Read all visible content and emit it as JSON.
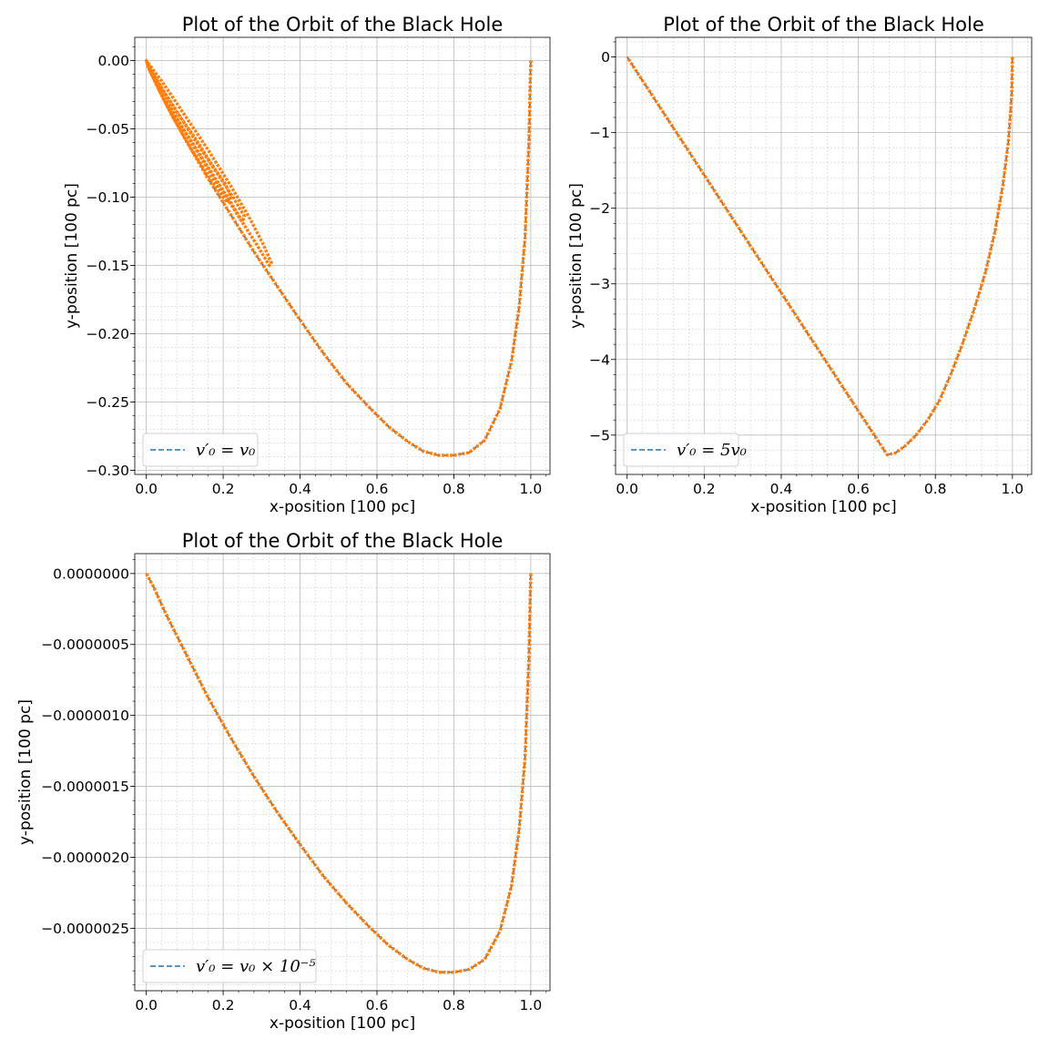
{
  "colors": {
    "orbit": "#ff7f0e",
    "dashed": "#1f77b4",
    "grid": "#b0b0b0"
  },
  "chart_data": [
    {
      "type": "line",
      "title": "Plot of the Orbit of the Black Hole",
      "xlabel": "x-position [100 pc]",
      "ylabel": "y-position [100 pc]",
      "xlim": [
        -0.03,
        1.05
      ],
      "ylim": [
        -0.303,
        0.017
      ],
      "xticks": [
        0.0,
        0.2,
        0.4,
        0.6,
        0.8,
        1.0
      ],
      "xtick_labels": [
        "0.0",
        "0.2",
        "0.4",
        "0.6",
        "0.8",
        "1.0"
      ],
      "yticks": [
        0.0,
        -0.05,
        -0.1,
        -0.15,
        -0.2,
        -0.25,
        -0.3
      ],
      "ytick_labels": [
        "0.00",
        "−0.05",
        "−0.10",
        "−0.15",
        "−0.20",
        "−0.25",
        "−0.30"
      ],
      "grid": true,
      "legend": {
        "position": "lower-left",
        "entries": [
          {
            "label": "v′₀ = v₀"
          }
        ]
      },
      "series": [
        {
          "style": "dashed",
          "x": [
            1.0,
            0.995,
            0.985,
            0.97,
            0.95,
            0.92,
            0.88,
            0.84,
            0.8,
            0.76,
            0.72,
            0.68,
            0.63,
            0.58,
            0.52,
            0.46,
            0.4,
            0.34,
            0.28,
            0.22,
            0.16,
            0.1,
            0.05,
            0.01,
            0.0
          ],
          "y": [
            0.0,
            -0.06,
            -0.13,
            -0.18,
            -0.22,
            -0.255,
            -0.278,
            -0.287,
            -0.289,
            -0.289,
            -0.286,
            -0.279,
            -0.268,
            -0.254,
            -0.236,
            -0.214,
            -0.19,
            -0.165,
            -0.14,
            -0.113,
            -0.086,
            -0.057,
            -0.031,
            -0.008,
            0.0
          ]
        },
        {
          "style": "orbit",
          "x": [
            1.0,
            0.995,
            0.985,
            0.97,
            0.95,
            0.92,
            0.88,
            0.84,
            0.8,
            0.76,
            0.72,
            0.68,
            0.63,
            0.58,
            0.52,
            0.46,
            0.4,
            0.34,
            0.28,
            0.22,
            0.16,
            0.1,
            0.05,
            0.01,
            0.0,
            0.005,
            0.04,
            0.1,
            0.16,
            0.22,
            0.27,
            0.305,
            0.325,
            0.32,
            0.29,
            0.24,
            0.18,
            0.12,
            0.06,
            0.02,
            0.0,
            0.01,
            0.04,
            0.09,
            0.14,
            0.19,
            0.23,
            0.255,
            0.25,
            0.22,
            0.17,
            0.11,
            0.05,
            0.015,
            0.0,
            0.01,
            0.04,
            0.08,
            0.13,
            0.17,
            0.205,
            0.22,
            0.21,
            0.17,
            0.12,
            0.07,
            0.03,
            0.005,
            0.0
          ],
          "y": [
            0.0,
            -0.06,
            -0.13,
            -0.18,
            -0.22,
            -0.255,
            -0.278,
            -0.287,
            -0.289,
            -0.289,
            -0.286,
            -0.279,
            -0.268,
            -0.254,
            -0.236,
            -0.214,
            -0.19,
            -0.165,
            -0.14,
            -0.113,
            -0.086,
            -0.057,
            -0.031,
            -0.008,
            0.0,
            -0.002,
            -0.015,
            -0.04,
            -0.065,
            -0.092,
            -0.116,
            -0.135,
            -0.148,
            -0.15,
            -0.136,
            -0.114,
            -0.088,
            -0.061,
            -0.033,
            -0.012,
            0.0,
            -0.006,
            -0.02,
            -0.042,
            -0.064,
            -0.085,
            -0.102,
            -0.114,
            -0.118,
            -0.104,
            -0.082,
            -0.056,
            -0.03,
            -0.01,
            0.0,
            -0.006,
            -0.02,
            -0.038,
            -0.058,
            -0.076,
            -0.09,
            -0.1,
            -0.104,
            -0.088,
            -0.066,
            -0.042,
            -0.02,
            -0.005,
            0.0
          ]
        }
      ]
    },
    {
      "type": "line",
      "title": "Plot of the Orbit of the Black Hole",
      "xlabel": "x-position [100 pc]",
      "ylabel": "y-position [100 pc]",
      "xlim": [
        -0.03,
        1.05
      ],
      "ylim": [
        -5.52,
        0.26
      ],
      "xticks": [
        0.0,
        0.2,
        0.4,
        0.6,
        0.8,
        1.0
      ],
      "xtick_labels": [
        "0.0",
        "0.2",
        "0.4",
        "0.6",
        "0.8",
        "1.0"
      ],
      "yticks": [
        0,
        -1,
        -2,
        -3,
        -4,
        -5
      ],
      "ytick_labels": [
        "0",
        "−1",
        "−2",
        "−3",
        "−4",
        "−5"
      ],
      "grid": true,
      "legend": {
        "position": "lower-left",
        "entries": [
          {
            "label": "v′₀ = 5v₀"
          }
        ]
      },
      "series": [
        {
          "style": "dashed",
          "x": [
            1.0,
            0.998,
            0.99,
            0.975,
            0.955,
            0.93,
            0.9,
            0.87,
            0.84,
            0.81,
            0.78,
            0.75,
            0.72,
            0.695,
            0.675,
            0.6,
            0.5,
            0.4,
            0.3,
            0.2,
            0.1,
            0.0
          ],
          "y": [
            0.0,
            -0.5,
            -1.1,
            -1.7,
            -2.3,
            -2.85,
            -3.35,
            -3.8,
            -4.2,
            -4.55,
            -4.8,
            -5.0,
            -5.15,
            -5.24,
            -5.26,
            -4.68,
            -3.9,
            -3.12,
            -2.34,
            -1.56,
            -0.78,
            0.0
          ]
        },
        {
          "style": "orbit",
          "x": [
            1.0,
            0.998,
            0.99,
            0.975,
            0.955,
            0.93,
            0.9,
            0.87,
            0.84,
            0.81,
            0.78,
            0.75,
            0.72,
            0.695,
            0.675,
            0.6,
            0.5,
            0.4,
            0.3,
            0.2,
            0.1,
            0.0
          ],
          "y": [
            0.0,
            -0.5,
            -1.1,
            -1.7,
            -2.3,
            -2.85,
            -3.35,
            -3.8,
            -4.2,
            -4.55,
            -4.8,
            -5.0,
            -5.15,
            -5.24,
            -5.26,
            -4.68,
            -3.9,
            -3.12,
            -2.34,
            -1.56,
            -0.78,
            0.0
          ]
        }
      ]
    },
    {
      "type": "line",
      "title": "Plot of the Orbit of the Black Hole",
      "xlabel": "x-position [100 pc]",
      "ylabel": "y-position [100 pc]",
      "xlim": [
        -0.03,
        1.05
      ],
      "ylim": [
        -2.94e-06,
        1.4e-07
      ],
      "xticks": [
        0.0,
        0.2,
        0.4,
        0.6,
        0.8,
        1.0
      ],
      "xtick_labels": [
        "0.0",
        "0.2",
        "0.4",
        "0.6",
        "0.8",
        "1.0"
      ],
      "yticks": [
        0.0,
        -5e-07,
        -1e-06,
        -1.5e-06,
        -2e-06,
        -2.5e-06
      ],
      "ytick_labels": [
        "0.0000000",
        "−0.0000005",
        "−0.0000010",
        "−0.0000015",
        "−0.0000020",
        "−0.0000025"
      ],
      "grid": true,
      "legend": {
        "position": "lower-left",
        "entries": [
          {
            "label": "v′₀ = v₀ × 10⁻⁵"
          }
        ]
      },
      "series": [
        {
          "style": "dashed",
          "x": [
            1.0,
            0.995,
            0.985,
            0.97,
            0.95,
            0.92,
            0.88,
            0.84,
            0.8,
            0.76,
            0.72,
            0.68,
            0.63,
            0.58,
            0.52,
            0.46,
            0.4,
            0.34,
            0.28,
            0.22,
            0.16,
            0.1,
            0.05,
            0.02,
            0.0
          ],
          "y": [
            0.0,
            -6e-07,
            -1.3e-06,
            -1.8e-06,
            -2.2e-06,
            -2.52e-06,
            -2.72e-06,
            -2.79e-06,
            -2.81e-06,
            -2.81e-06,
            -2.78e-06,
            -2.72e-06,
            -2.62e-06,
            -2.49e-06,
            -2.32e-06,
            -2.13e-06,
            -1.91e-06,
            -1.68e-06,
            -1.43e-06,
            -1.16e-06,
            -8.7e-07,
            -5.5e-07,
            -2.8e-07,
            -1e-07,
            0.0
          ]
        },
        {
          "style": "orbit",
          "x": [
            1.0,
            0.995,
            0.985,
            0.97,
            0.95,
            0.92,
            0.88,
            0.84,
            0.8,
            0.76,
            0.72,
            0.68,
            0.63,
            0.58,
            0.52,
            0.46,
            0.4,
            0.34,
            0.28,
            0.22,
            0.16,
            0.1,
            0.05,
            0.02,
            0.0
          ],
          "y": [
            0.0,
            -6e-07,
            -1.3e-06,
            -1.8e-06,
            -2.2e-06,
            -2.52e-06,
            -2.72e-06,
            -2.79e-06,
            -2.81e-06,
            -2.81e-06,
            -2.78e-06,
            -2.72e-06,
            -2.62e-06,
            -2.49e-06,
            -2.32e-06,
            -2.13e-06,
            -1.91e-06,
            -1.68e-06,
            -1.43e-06,
            -1.16e-06,
            -8.7e-07,
            -5.5e-07,
            -2.8e-07,
            -1e-07,
            0.0
          ]
        }
      ]
    }
  ]
}
